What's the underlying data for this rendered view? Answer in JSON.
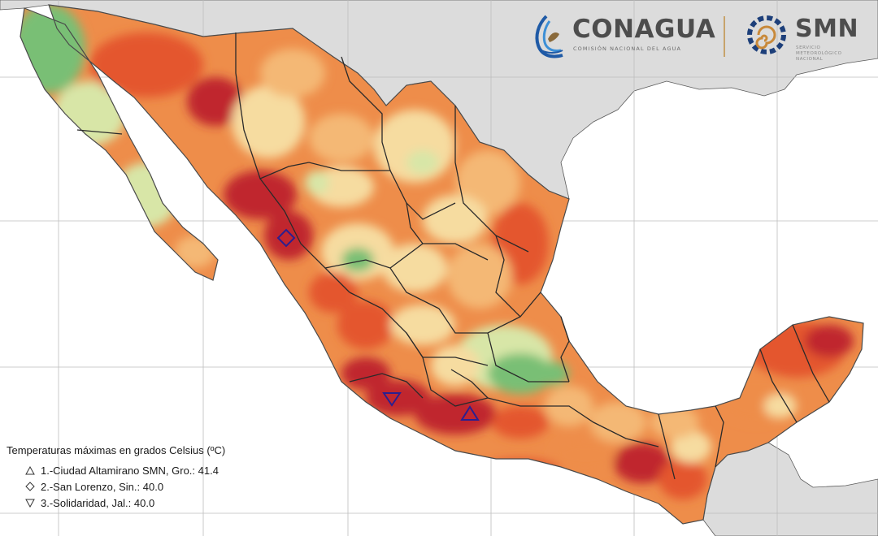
{
  "logos": {
    "conagua": {
      "title": "CONAGUA",
      "subtitle": "COMISIÓN NACIONAL DEL AGUA"
    },
    "smn": {
      "title": "SMN",
      "subtitle_lines": [
        "SERVICIO",
        "METEOROLÓGICO",
        "NACIONAL"
      ]
    }
  },
  "legend": {
    "title": "Temperaturas máximas en grados Celsius (ºC)",
    "items": [
      {
        "symbol": "triangle-up-icon",
        "text": "1.-Ciudad Altamirano SMN, Gro.: 41.4"
      },
      {
        "symbol": "diamond-icon",
        "text": "2.-San Lorenzo, Sin.: 40.0"
      },
      {
        "symbol": "triangle-down-icon",
        "text": "3.-Solidaridad, Jal.: 40.0"
      }
    ]
  },
  "stations": [
    {
      "rank": 1,
      "name": "Ciudad Altamirano SMN",
      "state": "Gro.",
      "tmax_c": 41.4,
      "marker": "triangle-up-icon"
    },
    {
      "rank": 2,
      "name": "San Lorenzo",
      "state": "Sin.",
      "tmax_c": 40.0,
      "marker": "diamond-icon"
    },
    {
      "rank": 3,
      "name": "Solidaridad",
      "state": "Jal.",
      "tmax_c": 40.0,
      "marker": "triangle-down-icon"
    }
  ],
  "colors": {
    "ocean": "#ffffff",
    "land_foreign": "#dcdcdc",
    "gridline": "#bdbdbd",
    "hot_extreme": "#c0272d",
    "hot": "#e4572e",
    "warm": "#ee8d4a",
    "mild": "#f4b874",
    "cool": "#f6dca0",
    "cooler": "#d8e6a7",
    "coolest": "#79bf74",
    "marker_stroke": "#2b1f8f"
  }
}
